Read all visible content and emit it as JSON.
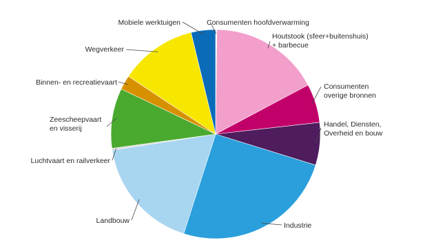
{
  "chart_data": {
    "type": "pie",
    "title": "",
    "slices": [
      {
        "label": "Consumenten hoofdverwarming",
        "value": 0.2,
        "color": "#ffffff"
      },
      {
        "label": "Houtstook (sfeer+buitenshuis) + barbecue",
        "value": 17.6,
        "color": "#f29fcb"
      },
      {
        "label": "Consumenten overige bronnen",
        "value": 6.2,
        "color": "#c2006a"
      },
      {
        "label": "Handel, Diensten, Overheid en bouw",
        "value": 6.8,
        "color": "#4f1c5e"
      },
      {
        "label": "Industrie",
        "value": 26.0,
        "color": "#2a9fdc"
      },
      {
        "label": "Landbouw",
        "value": 18.2,
        "color": "#a8d5f0"
      },
      {
        "label": "Luchtvaart en railverkeer",
        "value": 0.3,
        "color": "#d9d9d9"
      },
      {
        "label": "Zeescheepvaart en visserij",
        "value": 9.6,
        "color": "#4aaa2f"
      },
      {
        "label": "Binnen- en recreatievaart",
        "value": 2.3,
        "color": "#d79100"
      },
      {
        "label": "Wegverkeer",
        "value": 12.3,
        "color": "#f7e600"
      },
      {
        "label": "Mobiele werktuigen",
        "value": 3.9,
        "color": "#0a6cb9"
      }
    ]
  }
}
